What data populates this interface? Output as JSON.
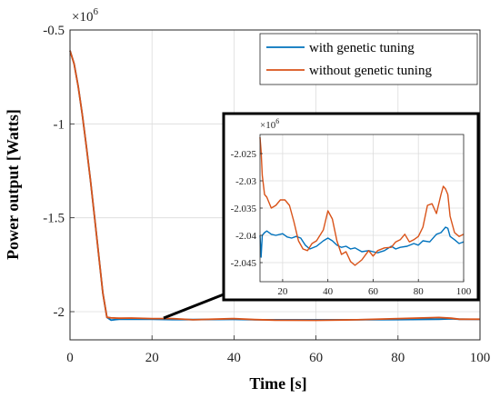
{
  "chart_data": [
    {
      "type": "line",
      "xlabel": "Time [s]",
      "ylabel": "Power output [Watts]",
      "y_multiplier": "×10^6",
      "xlim": [
        0,
        100
      ],
      "ylim": [
        -2.15,
        -0.5
      ],
      "xticks": [
        0,
        20,
        40,
        60,
        80,
        100
      ],
      "xtick_labels": [
        "0",
        "20",
        "40",
        "60",
        "80",
        "100"
      ],
      "yticks": [
        -0.5,
        -1,
        -1.5,
        -2
      ],
      "ytick_labels": [
        "-0.5",
        "-1",
        "-1.5",
        "-2"
      ],
      "grid": true,
      "legend_position": "top-right",
      "series": [
        {
          "name": "with genetic tuning",
          "color": "#0072BD",
          "x": [
            0,
            1,
            2,
            3,
            4,
            5,
            6,
            7,
            8,
            9,
            10,
            12,
            15,
            20,
            25,
            30,
            40,
            45,
            50,
            60,
            70,
            80,
            90,
            93,
            95,
            100
          ],
          "y": [
            -0.61,
            -0.68,
            -0.8,
            -0.95,
            -1.12,
            -1.3,
            -1.5,
            -1.7,
            -1.9,
            -2.03,
            -2.045,
            -2.04,
            -2.04,
            -2.04,
            -2.042,
            -2.042,
            -2.041,
            -2.043,
            -2.043,
            -2.043,
            -2.043,
            -2.042,
            -2.04,
            -2.038,
            -2.04,
            -2.041
          ]
        },
        {
          "name": "without genetic tuning",
          "color": "#D95319",
          "x": [
            0,
            1,
            2,
            3,
            4,
            5,
            6,
            7,
            8,
            9,
            10,
            12,
            15,
            20,
            25,
            30,
            40,
            45,
            50,
            60,
            70,
            80,
            90,
            93,
            95,
            100
          ],
          "y": [
            -0.61,
            -0.68,
            -0.8,
            -0.95,
            -1.12,
            -1.3,
            -1.5,
            -1.7,
            -1.9,
            -2.03,
            -2.033,
            -2.035,
            -2.034,
            -2.037,
            -2.037,
            -2.043,
            -2.037,
            -2.042,
            -2.045,
            -2.046,
            -2.043,
            -2.037,
            -2.031,
            -2.035,
            -2.04,
            -2.04
          ]
        }
      ]
    },
    {
      "type": "line",
      "inset": true,
      "y_multiplier": "×10^6",
      "xlim": [
        10,
        100
      ],
      "ylim": [
        -2.0485,
        -2.0215
      ],
      "xticks": [
        20,
        40,
        60,
        80,
        100
      ],
      "xtick_labels": [
        "20",
        "40",
        "60",
        "80",
        "100"
      ],
      "yticks": [
        -2.025,
        -2.03,
        -2.035,
        -2.04,
        -2.045
      ],
      "ytick_labels": [
        "-2.025",
        "-2.03",
        "-2.035",
        "-2.04",
        "-2.045"
      ],
      "grid": true,
      "series": [
        {
          "name": "with genetic tuning",
          "color": "#0072BD",
          "x": [
            10,
            10.5,
            11,
            12,
            13,
            15,
            17,
            20,
            22,
            24,
            26,
            28,
            30,
            32,
            35,
            38,
            40,
            42,
            44,
            46,
            48,
            50,
            52,
            55,
            58,
            60,
            62,
            65,
            68,
            70,
            72,
            75,
            78,
            80,
            82,
            85,
            88,
            90,
            92,
            93,
            94,
            96,
            98,
            100
          ],
          "y": [
            -2.04,
            -2.044,
            -2.04,
            -2.0395,
            -2.0392,
            -2.0398,
            -2.04,
            -2.0397,
            -2.0403,
            -2.0405,
            -2.0402,
            -2.0405,
            -2.0418,
            -2.0425,
            -2.042,
            -2.041,
            -2.0405,
            -2.041,
            -2.0418,
            -2.0422,
            -2.042,
            -2.0425,
            -2.0423,
            -2.043,
            -2.0428,
            -2.043,
            -2.0432,
            -2.0428,
            -2.042,
            -2.0425,
            -2.0422,
            -2.042,
            -2.0415,
            -2.0418,
            -2.041,
            -2.0412,
            -2.0398,
            -2.0395,
            -2.0385,
            -2.0387,
            -2.0402,
            -2.0408,
            -2.0415,
            -2.0412
          ]
        },
        {
          "name": "without genetic tuning",
          "color": "#D95319",
          "x": [
            10,
            10.5,
            11,
            12,
            13,
            15,
            17,
            19,
            21,
            23,
            25,
            27,
            29,
            31,
            33,
            35,
            38,
            40,
            42,
            44,
            46,
            48,
            50,
            52,
            55,
            58,
            60,
            62,
            65,
            68,
            70,
            72,
            74,
            76,
            78,
            80,
            82,
            84,
            86,
            88,
            90,
            91,
            92,
            93,
            94,
            96,
            98,
            100
          ],
          "y": [
            -2.022,
            -2.0245,
            -2.029,
            -2.0325,
            -2.033,
            -2.035,
            -2.0345,
            -2.0335,
            -2.0335,
            -2.0345,
            -2.0375,
            -2.041,
            -2.0425,
            -2.0428,
            -2.0415,
            -2.041,
            -2.039,
            -2.0355,
            -2.037,
            -2.041,
            -2.0435,
            -2.043,
            -2.0448,
            -2.0455,
            -2.0445,
            -2.0428,
            -2.0438,
            -2.0428,
            -2.0423,
            -2.0422,
            -2.0412,
            -2.0408,
            -2.0398,
            -2.0412,
            -2.0408,
            -2.0402,
            -2.0385,
            -2.0345,
            -2.0342,
            -2.036,
            -2.0325,
            -2.031,
            -2.0315,
            -2.0325,
            -2.0365,
            -2.0395,
            -2.0402,
            -2.0398
          ]
        }
      ]
    }
  ]
}
